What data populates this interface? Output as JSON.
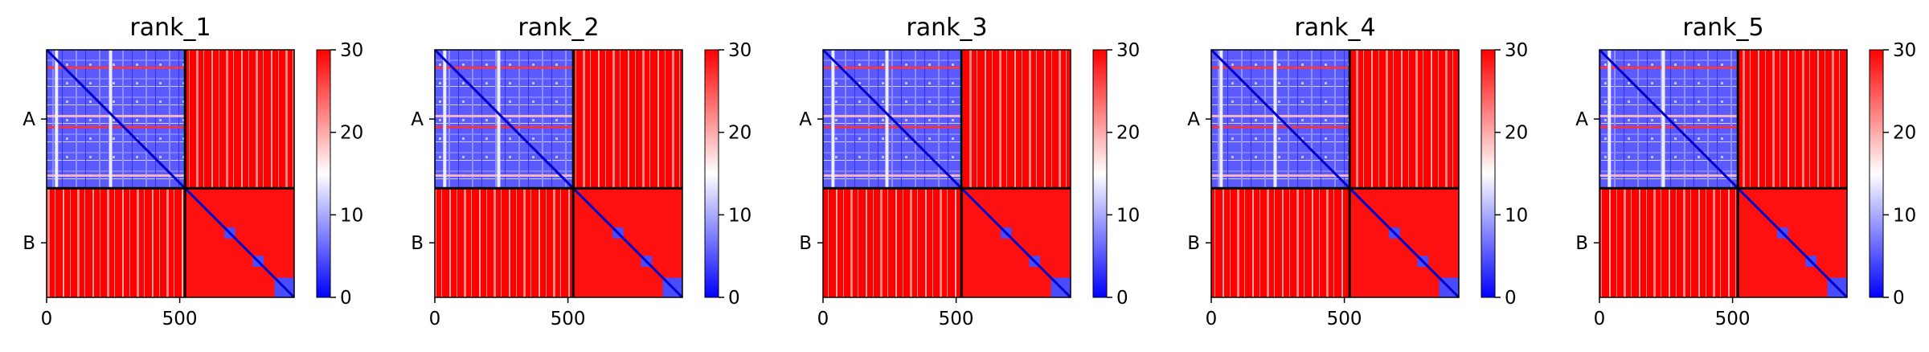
{
  "chart_data": [
    {
      "type": "heatmap",
      "title": "rank_1",
      "chains": [
        "A",
        "B"
      ],
      "xticks": [
        0,
        500
      ],
      "colorbar": {
        "ticks": [
          0,
          10,
          20,
          30
        ],
        "range": [
          0,
          30
        ],
        "colormap": "bwr"
      },
      "xlim": [
        0,
        930
      ],
      "chain_boundary": 520
    },
    {
      "type": "heatmap",
      "title": "rank_2",
      "chains": [
        "A",
        "B"
      ],
      "xticks": [
        0,
        500
      ],
      "colorbar": {
        "ticks": [
          0,
          10,
          20,
          30
        ],
        "range": [
          0,
          30
        ],
        "colormap": "bwr"
      },
      "xlim": [
        0,
        930
      ],
      "chain_boundary": 520
    },
    {
      "type": "heatmap",
      "title": "rank_3",
      "chains": [
        "A",
        "B"
      ],
      "xticks": [
        0,
        500
      ],
      "colorbar": {
        "ticks": [
          0,
          10,
          20,
          30
        ],
        "range": [
          0,
          30
        ],
        "colormap": "bwr"
      },
      "xlim": [
        0,
        930
      ],
      "chain_boundary": 520
    },
    {
      "type": "heatmap",
      "title": "rank_4",
      "chains": [
        "A",
        "B"
      ],
      "xticks": [
        0,
        500
      ],
      "colorbar": {
        "ticks": [
          0,
          10,
          20,
          30
        ],
        "range": [
          0,
          30
        ],
        "colormap": "bwr"
      },
      "xlim": [
        0,
        930
      ],
      "chain_boundary": 520
    },
    {
      "type": "heatmap",
      "title": "rank_5",
      "chains": [
        "A",
        "B"
      ],
      "xticks": [
        0,
        500
      ],
      "colorbar": {
        "ticks": [
          0,
          10,
          20,
          30
        ],
        "range": [
          0,
          30
        ],
        "colormap": "bwr"
      },
      "xlim": [
        0,
        930
      ],
      "chain_boundary": 520
    }
  ],
  "colors": {
    "low": "#0000ff",
    "mid": "#ffffff",
    "high": "#ff0000",
    "divider": "#000000"
  }
}
